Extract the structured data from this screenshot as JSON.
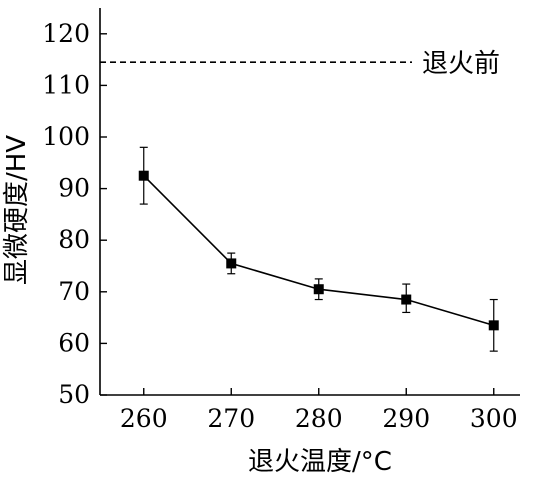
{
  "chart_data": {
    "type": "line",
    "xlabel": "退火温度/°C",
    "ylabel": "显微硬度/HV",
    "x": [
      260,
      270,
      280,
      290,
      300
    ],
    "x_ticks": [
      "260",
      "270",
      "280",
      "290",
      "300"
    ],
    "y_ticks": [
      "50",
      "60",
      "70",
      "80",
      "90",
      "100",
      "110",
      "120"
    ],
    "xlim": [
      255,
      303
    ],
    "ylim": [
      50,
      125
    ],
    "series": [
      {
        "values": [
          92.5,
          75.5,
          70.5,
          68.5,
          63.5
        ],
        "error_low": [
          87,
          73.5,
          68.5,
          66,
          58.5
        ],
        "error_high": [
          98,
          77.5,
          72.5,
          71.5,
          68.5
        ],
        "marker": "square",
        "color": "#000000"
      }
    ],
    "reference_line": {
      "value": 114.5,
      "label": "退火前",
      "style": "dashed"
    },
    "grid": false,
    "legend": "none"
  }
}
